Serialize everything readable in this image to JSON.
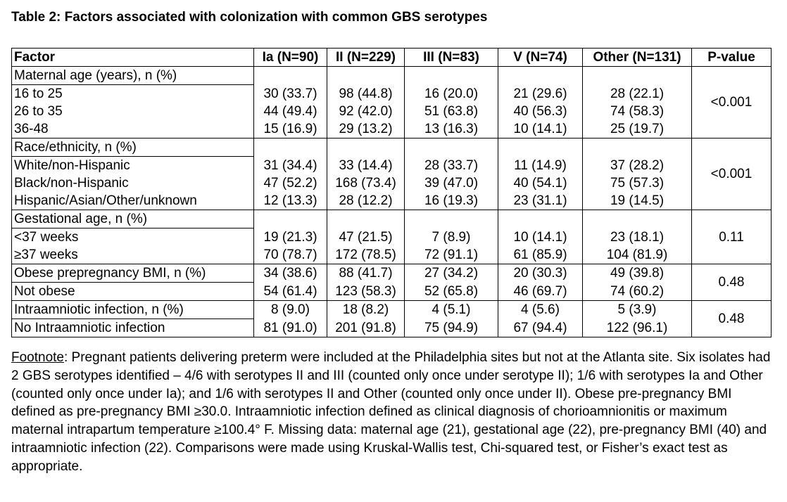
{
  "title": "Table 2: Factors associated with colonization with common GBS serotypes",
  "headers": [
    "Factor",
    "Ia (N=90)",
    "II (N=229)",
    "III (N=83)",
    "V (N=74)",
    "Other (N=131)",
    "P-value"
  ],
  "groups": [
    {
      "label": "Maternal age (years), n (%)",
      "header_values": [
        "",
        "",
        "",
        "",
        ""
      ],
      "pvalue": "<0.001",
      "rows": [
        {
          "label": "16 to 25",
          "values": [
            "30 (33.7)",
            "98 (44.8)",
            "16 (20.0)",
            "21 (29.6)",
            "28 (22.1)"
          ]
        },
        {
          "label": "26 to 35",
          "values": [
            "44 (49.4)",
            "92 (42.0)",
            "51 (63.8)",
            "40 (56.3)",
            "74 (58.3)"
          ]
        },
        {
          "label": "36-48",
          "values": [
            "15 (16.9)",
            "29 (13.2)",
            "13 (16.3)",
            "10 (14.1)",
            "25 (19.7)"
          ]
        }
      ]
    },
    {
      "label": "Race/ethnicity, n (%)",
      "header_values": [
        "",
        "",
        "",
        "",
        ""
      ],
      "pvalue": "<0.001",
      "rows": [
        {
          "label": "White/non-Hispanic",
          "values": [
            "31 (34.4)",
            "33 (14.4)",
            "28 (33.7)",
            "11 (14.9)",
            "37 (28.2)"
          ]
        },
        {
          "label": "Black/non-Hispanic",
          "values": [
            "47 (52.2)",
            "168 (73.4)",
            "39 (47.0)",
            "40 (54.1)",
            "75 (57.3)"
          ]
        },
        {
          "label": "Hispanic/Asian/Other/unknown",
          "values": [
            "12 (13.3)",
            "28 (12.2)",
            "16 (19.3)",
            "23 (31.1)",
            "19 (14.5)"
          ]
        }
      ]
    },
    {
      "label": "Gestational age, n (%)",
      "header_values": [
        "",
        "",
        "",
        "",
        ""
      ],
      "pvalue": "0.11",
      "rows": [
        {
          "label": "<37 weeks",
          "values": [
            "19 (21.3)",
            "47 (21.5)",
            "7 (8.9)",
            "10 (14.1)",
            "23 (18.1)"
          ]
        },
        {
          "label": "≥37 weeks",
          "values": [
            "70 (78.7)",
            "172 (78.5)",
            "72 (91.1)",
            "61 (85.9)",
            "104 (81.9)"
          ]
        }
      ]
    },
    {
      "label": "Obese prepregnancy BMI, n (%)",
      "header_values": [
        "34 (38.6)",
        "88 (41.7)",
        "27 (34.2)",
        "20 (30.3)",
        "49 (39.8)"
      ],
      "pvalue": "0.48",
      "rows": [
        {
          "label": "Not obese",
          "values": [
            "54 (61.4)",
            "123 (58.3)",
            "52 (65.8)",
            "46 (69.7)",
            "74 (60.2)"
          ]
        }
      ]
    },
    {
      "label": "Intraamniotic infection, n (%)",
      "header_values": [
        "8 (9.0)",
        "18 (8.2)",
        "4 (5.1)",
        "4 (5.6)",
        "5 (3.9)"
      ],
      "pvalue": "0.48",
      "rows": [
        {
          "label": "No Intraamniotic infection",
          "values": [
            "81 (91.0)",
            "201 (91.8)",
            "75 (94.9)",
            "67 (94.4)",
            "122 (96.1)"
          ]
        }
      ]
    }
  ],
  "footnote": {
    "label": "Footnote",
    "text": ": Pregnant patients delivering preterm were included at the Philadelphia sites but not at the Atlanta site. Six isolates had 2 GBS serotypes identified – 4/6 with serotypes II and III (counted only once under serotype II); 1/6 with serotypes Ia and Other (counted only once under Ia); and 1/6 with serotypes II and Other (counted only once under II). Obese pre-pregnancy BMI defined as pre-pregnancy BMI ≥30.0. Intraamniotic infection defined as clinical diagnosis of chorioamnionitis or maximum maternal intrapartum temperature ≥100.4° F. Missing data: maternal age (21), gestational age (22), pre-pregnancy BMI (40) and intraamniotic infection (22). Comparisons were made using Kruskal-Wallis test, Chi-squared test, or Fisher’s exact test as appropriate."
  }
}
